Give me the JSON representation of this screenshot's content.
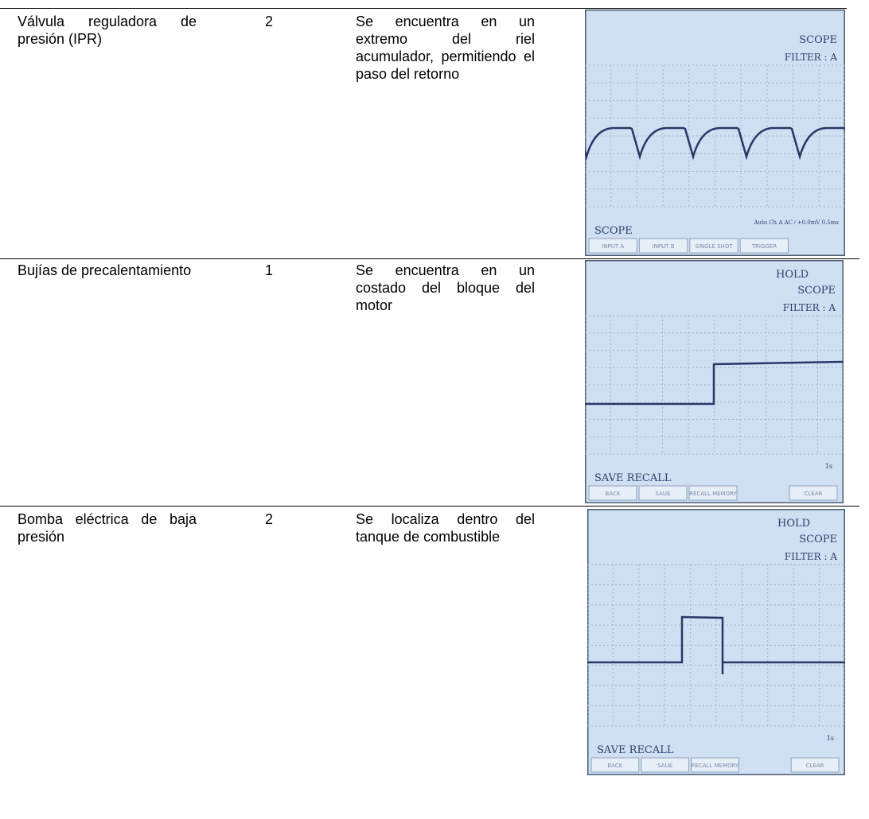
{
  "table": {
    "rows": [
      {
        "component": "Válvula reguladora de presión (IPR)",
        "quantity": "2",
        "location": "Se encuentra en un extremo del riel acumulador, permitiendo el paso del retorno",
        "screen": {
          "mode": "SCOPE",
          "filter": "FILTER : A",
          "status": "Auto Ch A AC ⁄ +0.0mV 0.5ms",
          "menu": "SCOPE",
          "buttons": [
            "INPUT A",
            "INPUT B",
            "SINGLE SHOT",
            "TRIGGER"
          ]
        }
      },
      {
        "component": "Bujías de precalentamiento",
        "quantity": "1",
        "location": "Se encuentra en un costado del bloque del motor",
        "screen": {
          "hold": "HOLD",
          "mode": "SCOPE",
          "filter": "FILTER : A",
          "time": "1s",
          "menu": "SAVE RECALL",
          "buttons": [
            "BACK",
            "SAUE",
            "RECALL MEMORY",
            "CLEAR"
          ]
        }
      },
      {
        "component": "Bomba eléctrica de baja presión",
        "quantity": "2",
        "location": "Se localiza dentro del tanque de combustible",
        "screen": {
          "hold": "HOLD",
          "mode": "SCOPE",
          "filter": "FILTER : A",
          "time": "1s",
          "menu": "SAVE RECALL",
          "buttons": [
            "BACK",
            "SAUE",
            "RECALL MEMORY",
            "CLEAR"
          ]
        }
      }
    ]
  }
}
